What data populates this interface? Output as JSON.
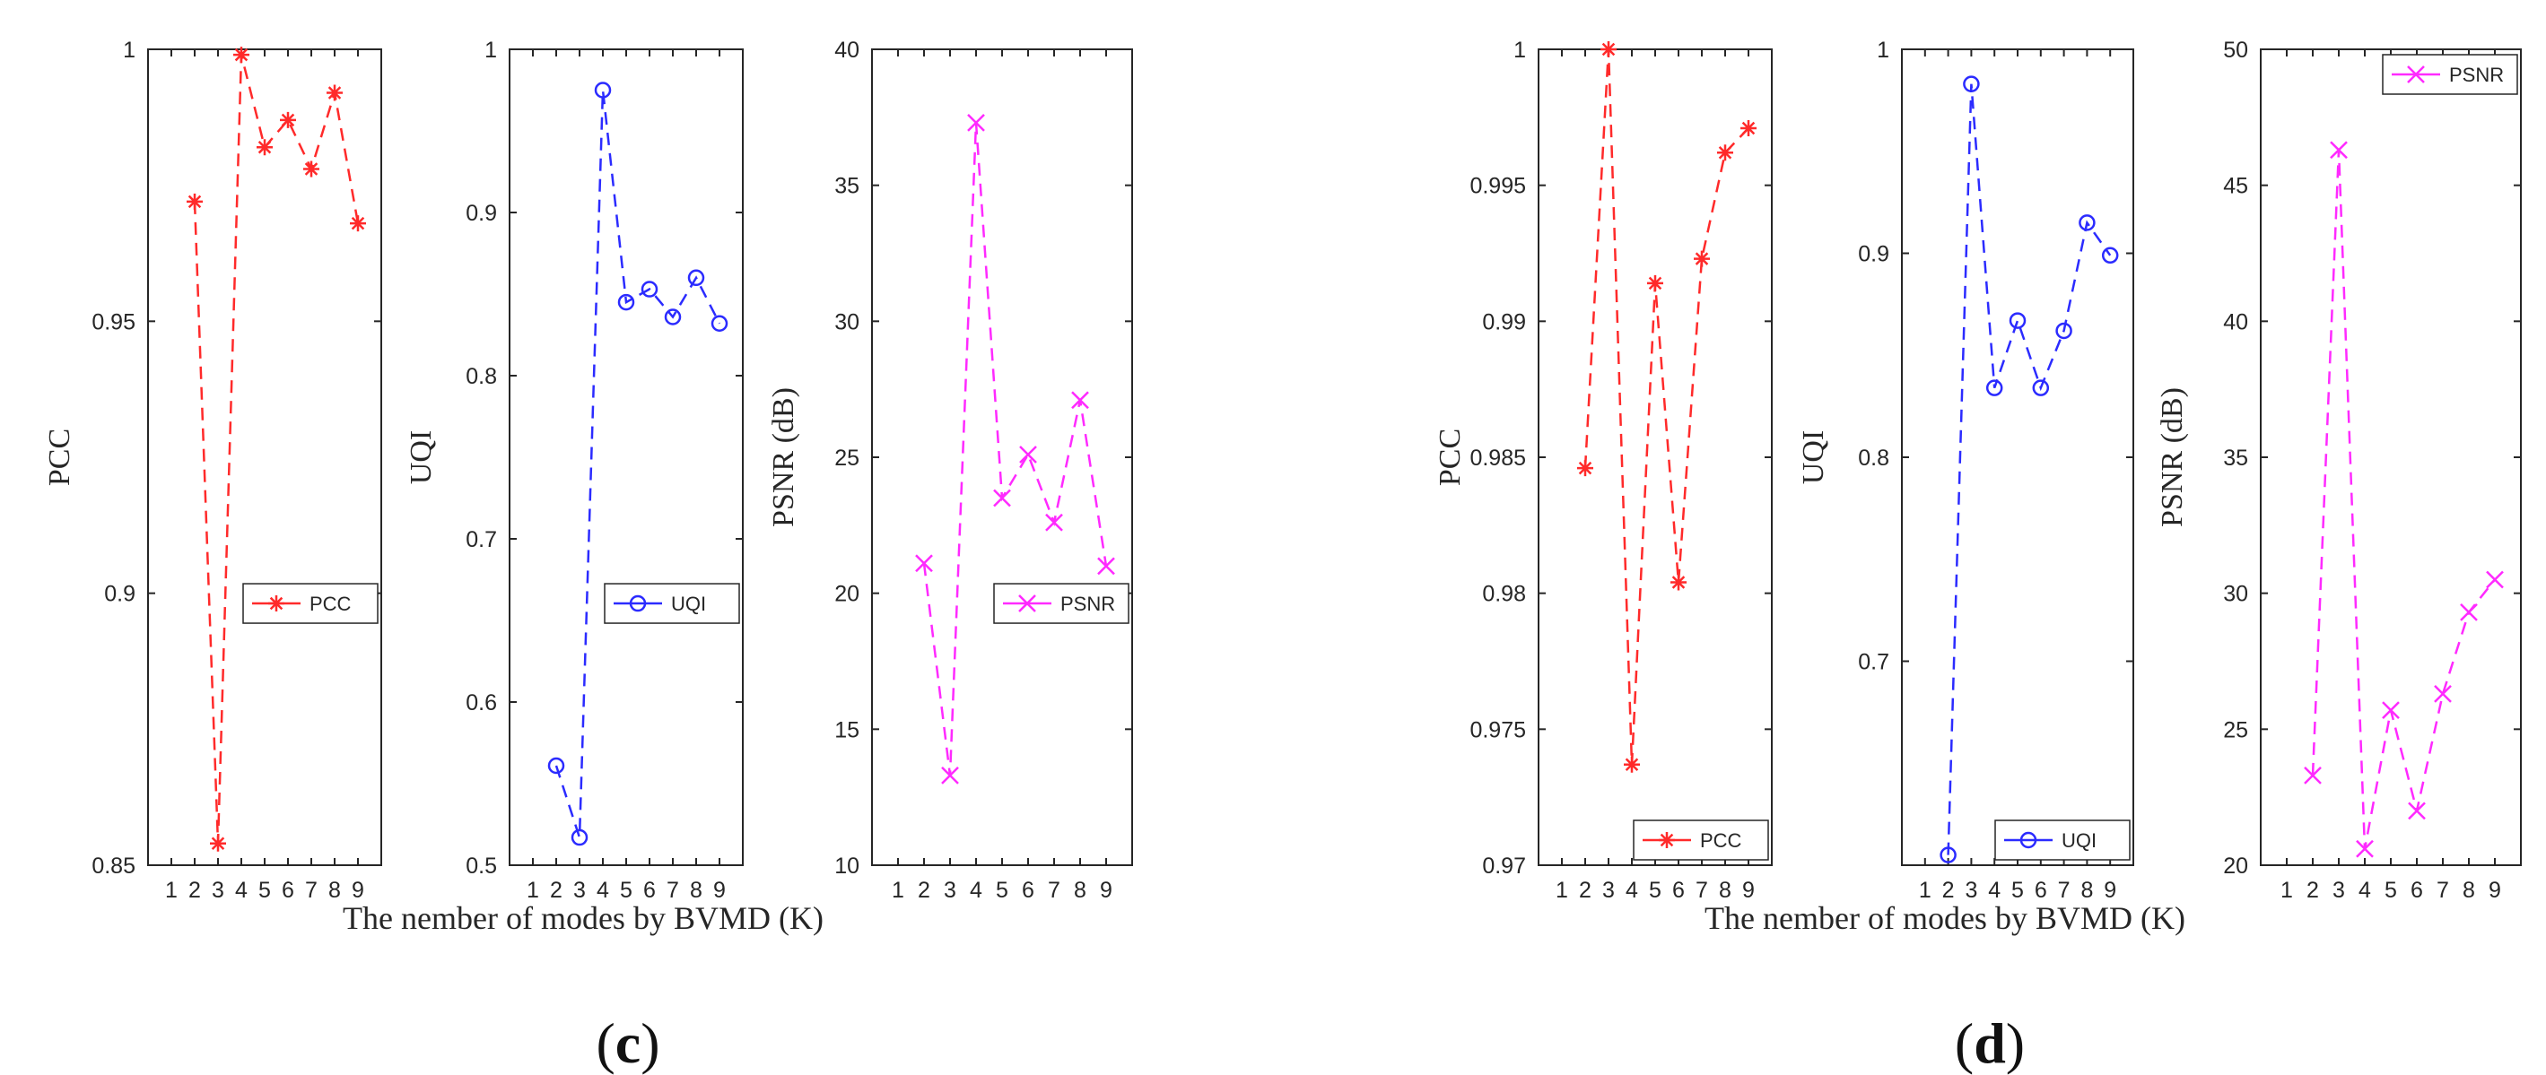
{
  "figure": {
    "groups": [
      {
        "xlabel": "The nember of modes by BVMD (K)",
        "label_open": "(",
        "label": "c",
        "label_close": ")"
      },
      {
        "xlabel": "The nember of modes by BVMD (K)",
        "label_open": "(",
        "label": "d",
        "label_close": ")"
      }
    ]
  },
  "chart_data": [
    {
      "type": "line",
      "group": "c",
      "ylabel": "PCC",
      "legend": "PCC",
      "legend_position": "right",
      "color": "#ff2a2a",
      "marker": "asterisk",
      "x": [
        2,
        3,
        4,
        5,
        6,
        7,
        8,
        9
      ],
      "y": [
        0.972,
        0.854,
        0.999,
        0.982,
        0.987,
        0.978,
        0.992,
        0.968
      ],
      "xlim": [
        0,
        10
      ],
      "ylim": [
        0.85,
        1.0
      ],
      "xticks": [
        1,
        2,
        3,
        4,
        5,
        6,
        7,
        8,
        9
      ],
      "yticks": [
        0.85,
        0.9,
        0.95,
        1
      ],
      "ytick_labels": [
        "0.85",
        "0.9",
        "0.95",
        "1"
      ]
    },
    {
      "type": "line",
      "group": "c",
      "ylabel": "UQI",
      "legend": "UQI",
      "legend_position": "right",
      "color": "#2b2bff",
      "marker": "circle",
      "x": [
        2,
        3,
        4,
        5,
        6,
        7,
        8,
        9
      ],
      "y": [
        0.561,
        0.517,
        0.975,
        0.845,
        0.853,
        0.836,
        0.86,
        0.832
      ],
      "xlim": [
        0,
        10
      ],
      "ylim": [
        0.5,
        1.0
      ],
      "xticks": [
        1,
        2,
        3,
        4,
        5,
        6,
        7,
        8,
        9
      ],
      "yticks": [
        0.5,
        0.6,
        0.7,
        0.8,
        0.9,
        1
      ],
      "ytick_labels": [
        "0.5",
        "0.6",
        "0.7",
        "0.8",
        "0.9",
        "1"
      ]
    },
    {
      "type": "line",
      "group": "c",
      "ylabel": "PSNR (dB)",
      "legend": "PSNR",
      "legend_position": "right",
      "color": "#ff2aff",
      "marker": "x",
      "x": [
        2,
        3,
        4,
        5,
        6,
        7,
        8,
        9
      ],
      "y": [
        21.1,
        13.3,
        37.3,
        23.5,
        25.1,
        22.6,
        27.1,
        21.0
      ],
      "xlim": [
        0,
        10
      ],
      "ylim": [
        10,
        40
      ],
      "xticks": [
        1,
        2,
        3,
        4,
        5,
        6,
        7,
        8,
        9
      ],
      "yticks": [
        10,
        15,
        20,
        25,
        30,
        35,
        40
      ],
      "ytick_labels": [
        "10",
        "15",
        "20",
        "25",
        "30",
        "35",
        "40"
      ]
    },
    {
      "type": "line",
      "group": "d",
      "ylabel": "PCC",
      "legend": "PCC",
      "legend_position": "bottom-right",
      "color": "#ff2a2a",
      "marker": "asterisk",
      "x": [
        2,
        3,
        4,
        5,
        6,
        7,
        8,
        9
      ],
      "y": [
        0.9846,
        1.0,
        0.9737,
        0.9914,
        0.9804,
        0.9923,
        0.9962,
        0.9971
      ],
      "xlim": [
        0,
        10
      ],
      "ylim": [
        0.97,
        1.0
      ],
      "xticks": [
        1,
        2,
        3,
        4,
        5,
        6,
        7,
        8,
        9
      ],
      "yticks": [
        0.97,
        0.975,
        0.98,
        0.985,
        0.99,
        0.995,
        1
      ],
      "ytick_labels": [
        "0.97",
        "0.975",
        "0.98",
        "0.985",
        "0.99",
        "0.995",
        "1"
      ]
    },
    {
      "type": "line",
      "group": "d",
      "ylabel": "UQI",
      "legend": "UQI",
      "legend_position": "bottom-right",
      "color": "#2b2bff",
      "marker": "circle",
      "x": [
        2,
        3,
        4,
        5,
        6,
        7,
        8,
        9
      ],
      "y": [
        0.605,
        0.983,
        0.834,
        0.867,
        0.834,
        0.862,
        0.915,
        0.899
      ],
      "xlim": [
        0,
        10
      ],
      "ylim": [
        0.6,
        1.0
      ],
      "xticks": [
        1,
        2,
        3,
        4,
        5,
        6,
        7,
        8,
        9
      ],
      "yticks": [
        0.7,
        0.8,
        0.9,
        1
      ],
      "ytick_labels": [
        "0.7",
        "0.8",
        "0.9",
        "1"
      ]
    },
    {
      "type": "line",
      "group": "d",
      "ylabel": "PSNR (dB)",
      "legend": "PSNR",
      "legend_position": "top-right",
      "color": "#ff2aff",
      "marker": "x",
      "x": [
        2,
        3,
        4,
        5,
        6,
        7,
        8,
        9
      ],
      "y": [
        23.3,
        46.3,
        20.6,
        25.7,
        22.0,
        26.3,
        29.3,
        30.5
      ],
      "xlim": [
        0,
        10
      ],
      "ylim": [
        20,
        50
      ],
      "xticks": [
        1,
        2,
        3,
        4,
        5,
        6,
        7,
        8,
        9
      ],
      "yticks": [
        20,
        25,
        30,
        35,
        40,
        45,
        50
      ],
      "ytick_labels": [
        "20",
        "25",
        "30",
        "35",
        "40",
        "45",
        "50"
      ]
    }
  ]
}
